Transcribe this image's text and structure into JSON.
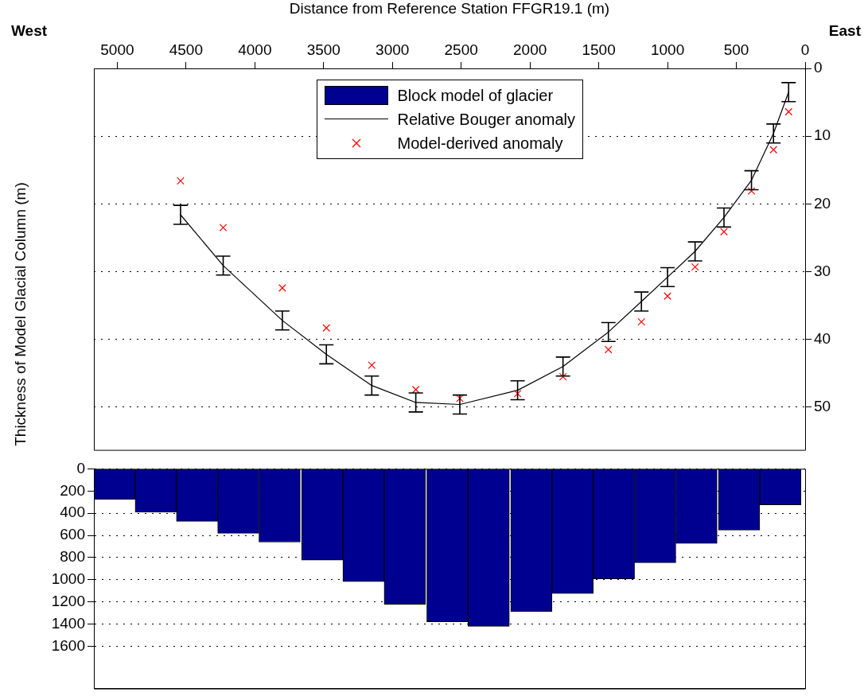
{
  "chart_data": [
    {
      "type": "line",
      "xlabel": "Distance from Reference Station FFGR19.1 (m)",
      "annotations": [
        "West",
        "East"
      ],
      "series": [
        {
          "name": "Relative Bouger anomaly",
          "color": "#000000",
          "marker": "none",
          "x": [
            4540,
            4230,
            3800,
            3480,
            3150,
            2830,
            2510,
            2090,
            1760,
            1430,
            1190,
            1000,
            800,
            590,
            390,
            230,
            120
          ],
          "values": [
            21.6,
            29.1,
            37.2,
            42.2,
            46.8,
            49.3,
            49.6,
            47.5,
            44.0,
            38.9,
            34.4,
            30.8,
            27.0,
            22.0,
            16.5,
            9.6,
            3.5
          ],
          "errors": [
            1.4,
            1.4,
            1.4,
            1.4,
            1.4,
            1.4,
            1.4,
            1.4,
            1.4,
            1.4,
            1.4,
            1.4,
            1.4,
            1.4,
            1.4,
            1.4,
            1.4
          ]
        },
        {
          "name": "Model-derived anomaly",
          "type": "scatter",
          "color": "#ff0000",
          "marker": "cross",
          "x": [
            4540,
            4230,
            3800,
            3480,
            3150,
            2830,
            2510,
            2090,
            1760,
            1430,
            1190,
            1000,
            800,
            590,
            390,
            230,
            120
          ],
          "values": [
            16.6,
            23.5,
            32.4,
            38.3,
            43.8,
            47.4,
            48.7,
            48.0,
            45.5,
            41.5,
            37.4,
            33.6,
            29.3,
            24.1,
            18.1,
            12.0,
            6.4
          ]
        }
      ],
      "xlim": [
        5170,
        0
      ],
      "xticks": [
        5000,
        4500,
        4000,
        3500,
        3000,
        2500,
        2000,
        1500,
        1000,
        500,
        0
      ],
      "ylim": [
        56.3,
        0
      ],
      "yticks": [
        0,
        10,
        20,
        30,
        40,
        50
      ],
      "grid": "y",
      "legend": "top"
    },
    {
      "type": "bar",
      "ylabel": "Thickness of Model Glacial Column (m)",
      "series": [
        {
          "name": "Block model of glacier",
          "color": "#000090",
          "x": [
            5020,
            4720,
            4420,
            4120,
            3820,
            3510,
            3210,
            2910,
            2600,
            2300,
            1990,
            1690,
            1390,
            1090,
            790,
            480,
            180
          ],
          "values": [
            274,
            390,
            473,
            581,
            660,
            822,
            1017,
            1220,
            1378,
            1419,
            1286,
            1124,
            992,
            846,
            672,
            552,
            324
          ]
        }
      ],
      "xlim": [
        5170,
        0
      ],
      "ylim": [
        1980,
        0
      ],
      "yticks": [
        0,
        200,
        400,
        600,
        800,
        1000,
        1200,
        1400,
        1600
      ],
      "grid": "y",
      "legend": "top",
      "tick_labels": "y"
    }
  ]
}
